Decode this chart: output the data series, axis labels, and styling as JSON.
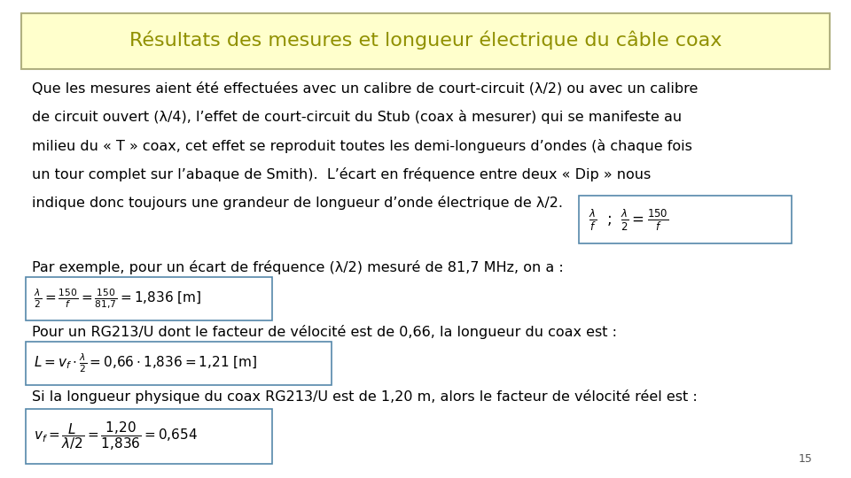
{
  "title": "Résultats des mesures et longueur électrique du câble coax",
  "title_bg": "#ffffcc",
  "title_border": "#b0b080",
  "title_color": "#909000",
  "body_bg": "#ffffff",
  "page_number": "15",
  "para1_line1": "Que les mesures aient été effectuées avec un calibre de court-circuit (λ/2) ou avec un calibre",
  "para1_line2": "de circuit ouvert (λ/4), l’effet de court-circuit du Stub (coax à mesurer) qui se manifeste au",
  "para1_line3": "milieu du « T » coax, cet effet se reproduit toutes les demi-longueurs d’ondes (à chaque fois",
  "para1_line4": "un tour complet sur l’abaque de Smith).  L’écart en fréquence entre deux « Dip » nous",
  "para1_line5": "indique donc toujours une grandeur de longueur d’onde électrique de λ/2.",
  "paragraph2": "Par exemple, pour un écart de fréquence (λ/2) mesuré de 81,7 MHz, on a :",
  "paragraph3": "Pour un RG213/U dont le facteur de vélocité est de 0,66, la longueur du coax est :",
  "paragraph4": "Si la longueur physique du coax RG213/U est de 1,20 m, alors le facteur de vélocité réel est :",
  "font_size_body": 11.5,
  "font_size_title": 16,
  "font_size_formula": 11
}
